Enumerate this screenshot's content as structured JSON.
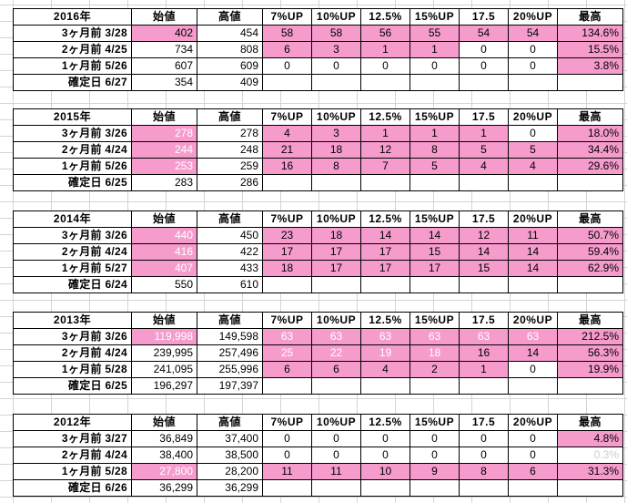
{
  "colors": {
    "highlight": "#f59ccd",
    "grid": "#d4d4d4",
    "faded": "#cccccc"
  },
  "headers": {
    "start": "始値",
    "high": "高値",
    "up7": "7%UP",
    "up10": "10%UP",
    "up125": "12.5%",
    "up15": "15%UP",
    "up175": "17.5",
    "up20": "20%UP",
    "max": "最高"
  },
  "blocks": [
    {
      "year": "2016年",
      "rows": [
        {
          "label": "3ヶ月前  3/28",
          "start": "402",
          "high": "454",
          "c7": "58",
          "c10": "58",
          "c125": "56",
          "c15": "55",
          "c175": "54",
          "c20": "54",
          "max": "134.6%"
        },
        {
          "label": "2ヶ月前  4/25",
          "start": "734",
          "high": "808",
          "c7": "6",
          "c10": "3",
          "c125": "1",
          "c15": "1",
          "c175": "0",
          "c20": "0",
          "max": "15.5%"
        },
        {
          "label": "1ヶ月前  5/26",
          "start": "607",
          "high": "609",
          "c7": "0",
          "c10": "0",
          "c125": "0",
          "c15": "0",
          "c175": "0",
          "c20": "0",
          "max": "3.8%"
        },
        {
          "label": "確定日  6/27",
          "start": "354",
          "high": "409"
        }
      ]
    },
    {
      "year": "2015年",
      "rows": [
        {
          "label": "3ヶ月前  3/26",
          "start": "278",
          "high": "278",
          "c7": "4",
          "c10": "3",
          "c125": "1",
          "c15": "1",
          "c175": "1",
          "c20": "0",
          "max": "18.0%"
        },
        {
          "label": "2ヶ月前  4/24",
          "start": "244",
          "high": "248",
          "c7": "21",
          "c10": "18",
          "c125": "12",
          "c15": "8",
          "c175": "5",
          "c20": "5",
          "max": "34.4%"
        },
        {
          "label": "1ヶ月前  5/26",
          "start": "253",
          "high": "259",
          "c7": "16",
          "c10": "8",
          "c125": "7",
          "c15": "5",
          "c175": "4",
          "c20": "4",
          "max": "29.6%"
        },
        {
          "label": "確定日  6/25",
          "start": "283",
          "high": "286"
        }
      ]
    },
    {
      "year": "2014年",
      "rows": [
        {
          "label": "3ヶ月前  3/26",
          "start": "440",
          "high": "450",
          "c7": "23",
          "c10": "18",
          "c125": "14",
          "c15": "14",
          "c175": "12",
          "c20": "11",
          "max": "50.7%"
        },
        {
          "label": "2ヶ月前  4/24",
          "start": "416",
          "high": "422",
          "c7": "17",
          "c10": "17",
          "c125": "17",
          "c15": "15",
          "c175": "14",
          "c20": "14",
          "max": "59.4%"
        },
        {
          "label": "1ヶ月前  5/27",
          "start": "407",
          "high": "433",
          "c7": "18",
          "c10": "17",
          "c125": "17",
          "c15": "17",
          "c175": "15",
          "c20": "14",
          "max": "62.9%"
        },
        {
          "label": "確定日  6/24",
          "start": "550",
          "high": "610"
        }
      ]
    },
    {
      "year": "2013年",
      "rows": [
        {
          "label": "3ヶ月前  3/26",
          "start": "119,998",
          "high": "149,598",
          "c7": "63",
          "c10": "63",
          "c125": "63",
          "c15": "63",
          "c175": "63",
          "c20": "63",
          "max": "212.5%"
        },
        {
          "label": "2ヶ月前  4/24",
          "start": "239,995",
          "high": "257,496",
          "c7": "25",
          "c10": "22",
          "c125": "19",
          "c15": "18",
          "c175": "16",
          "c20": "14",
          "max": "56.3%"
        },
        {
          "label": "1ヶ月前  5/28",
          "start": "241,095",
          "high": "255,996",
          "c7": "6",
          "c10": "6",
          "c125": "4",
          "c15": "2",
          "c175": "1",
          "c20": "0",
          "max": "19.9%"
        },
        {
          "label": "確定日  6/25",
          "start": "196,297",
          "high": "197,397"
        }
      ]
    },
    {
      "year": "2012年",
      "rows": [
        {
          "label": "3ヶ月前  3/27",
          "start": "36,849",
          "high": "37,400",
          "c7": "0",
          "c10": "0",
          "c125": "0",
          "c15": "0",
          "c175": "0",
          "c20": "0",
          "max": "4.8%"
        },
        {
          "label": "2ヶ月前  4/24",
          "start": "38,400",
          "high": "38,500",
          "c7": "0",
          "c10": "0",
          "c125": "0",
          "c15": "0",
          "c175": "0",
          "c20": "0",
          "max": "0.3%"
        },
        {
          "label": "1ヶ月前  5/28",
          "start": "27,800",
          "high": "28,200",
          "c7": "11",
          "c10": "11",
          "c125": "10",
          "c15": "9",
          "c175": "8",
          "c20": "6",
          "max": "31.3%"
        },
        {
          "label": "確定日  6/26",
          "start": "36,299",
          "high": "36,299"
        }
      ]
    }
  ]
}
